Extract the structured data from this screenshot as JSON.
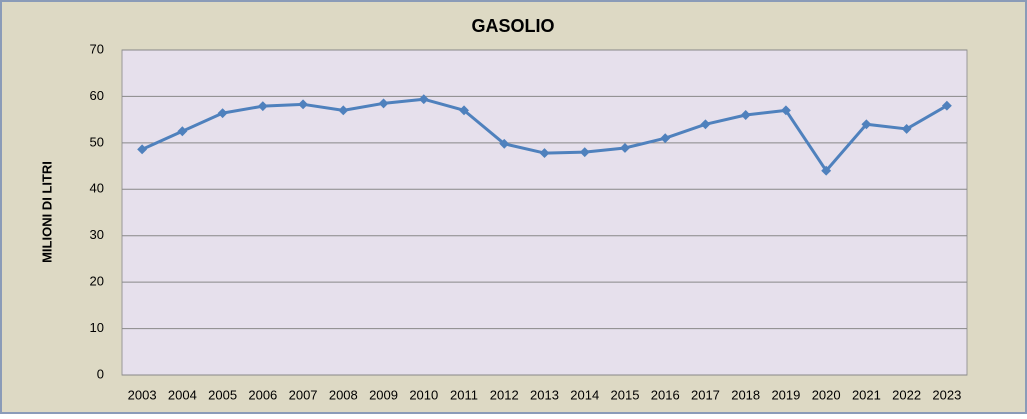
{
  "chart_data": {
    "type": "line",
    "title": "GASOLIO",
    "y_label": "MILIONI DI LITRI",
    "categories": [
      "2003",
      "2004",
      "2005",
      "2006",
      "2007",
      "2008",
      "2009",
      "2010",
      "2011",
      "2012",
      "2013",
      "2014",
      "2015",
      "2016",
      "2017",
      "2018",
      "2019",
      "2020",
      "2021",
      "2022",
      "2023"
    ],
    "series": [
      {
        "name": "GASOLIO",
        "color": "#4f81bd",
        "values": [
          48.6,
          52.5,
          56.4,
          57.9,
          58.3,
          57.0,
          58.5,
          59.4,
          57.0,
          49.8,
          47.8,
          48.0,
          48.9,
          51.0,
          54.0,
          56.0,
          57.0,
          44.0,
          54.0,
          53.0,
          58.0
        ]
      }
    ],
    "ylim": [
      0,
      70
    ],
    "yticks": [
      0,
      10,
      20,
      30,
      40,
      50,
      60,
      70
    ],
    "grid": true
  }
}
